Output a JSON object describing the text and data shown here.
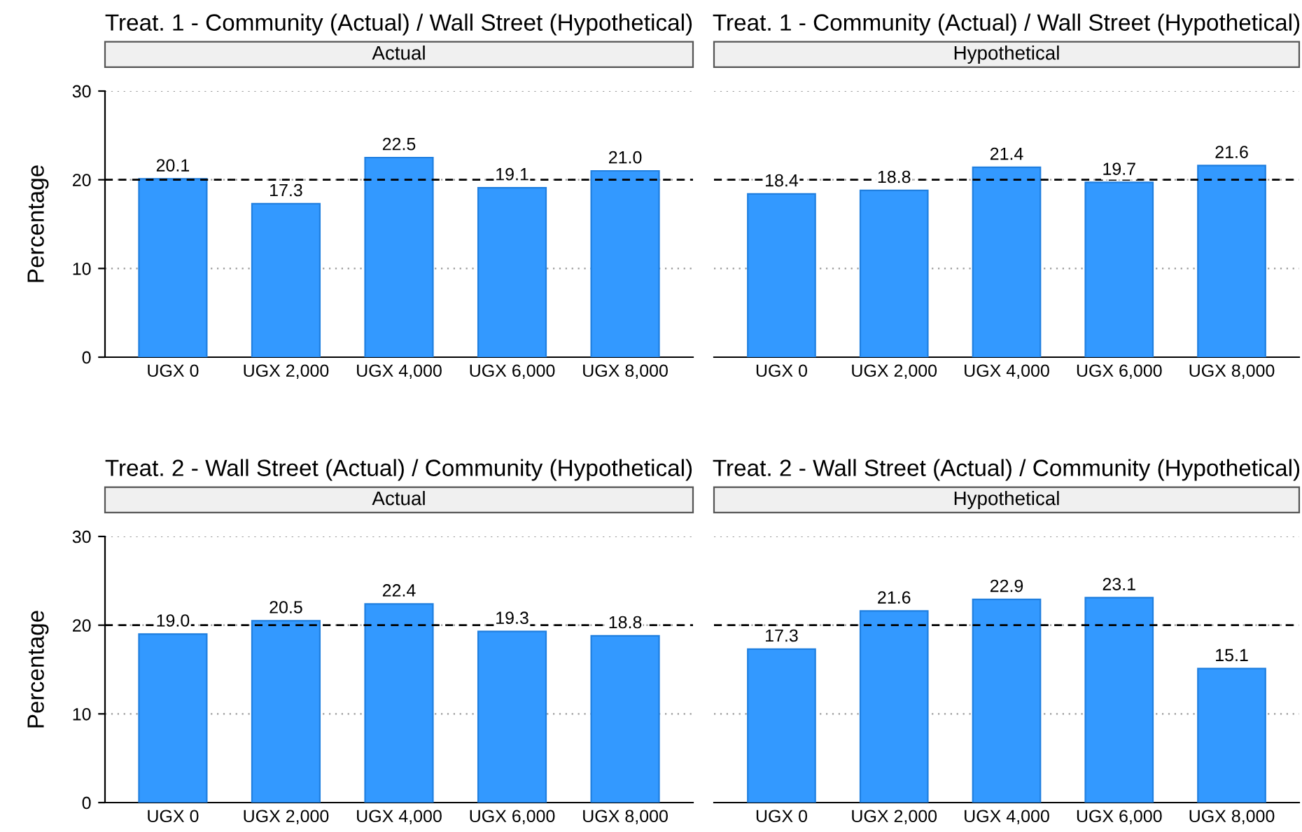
{
  "chart_data": [
    {
      "type": "bar",
      "title": "Treat. 1 - Community (Actual) / Wall Street (Hypothetical)",
      "subtitle": "Actual",
      "ylabel": "Percentage",
      "categories": [
        "UGX 0",
        "UGX 2,000",
        "UGX 4,000",
        "UGX 6,000",
        "UGX 8,000"
      ],
      "values": [
        20.1,
        17.3,
        22.5,
        19.1,
        21.0
      ],
      "value_labels": [
        "20.1",
        "17.3",
        "22.5",
        "19.1",
        "21.0"
      ],
      "color": "#3399ff",
      "ylim": [
        0,
        30
      ],
      "yticks": [
        0,
        10,
        20,
        30
      ],
      "grid": "y",
      "ref_lines": [
        {
          "axis": "y",
          "value": 20,
          "line_style": "dashed",
          "color": "#000000"
        }
      ]
    },
    {
      "type": "bar",
      "title": "Treat. 1 - Community (Actual) / Wall Street (Hypothetical)",
      "subtitle": "Hypothetical",
      "categories": [
        "UGX 0",
        "UGX 2,000",
        "UGX 4,000",
        "UGX 6,000",
        "UGX 8,000"
      ],
      "values": [
        18.4,
        18.8,
        21.4,
        19.7,
        21.6
      ],
      "value_labels": [
        "18.4",
        "18.8",
        "21.4",
        "19.7",
        "21.6"
      ],
      "color": "#3399ff",
      "ylim": [
        0,
        30
      ],
      "yticks": [
        0,
        10,
        20,
        30
      ],
      "grid": "y",
      "tick_labels": "x",
      "ref_lines": [
        {
          "axis": "y",
          "value": 20,
          "line_style": "dashed",
          "color": "#000000"
        }
      ]
    },
    {
      "type": "bar",
      "title": "Treat. 2 - Wall Street (Actual) / Community (Hypothetical)",
      "subtitle": "Actual",
      "ylabel": "Percentage",
      "categories": [
        "UGX 0",
        "UGX 2,000",
        "UGX 4,000",
        "UGX 6,000",
        "UGX 8,000"
      ],
      "values": [
        19.0,
        20.5,
        22.4,
        19.3,
        18.8
      ],
      "value_labels": [
        "19.0",
        "20.5",
        "22.4",
        "19.3",
        "18.8"
      ],
      "color": "#3399ff",
      "ylim": [
        0,
        30
      ],
      "yticks": [
        0,
        10,
        20,
        30
      ],
      "grid": "y",
      "ref_lines": [
        {
          "axis": "y",
          "value": 20,
          "line_style": "dashed",
          "color": "#000000"
        }
      ]
    },
    {
      "type": "bar",
      "title": "Treat. 2 - Wall Street (Actual) / Community (Hypothetical)",
      "subtitle": "Hypothetical",
      "categories": [
        "UGX 0",
        "UGX 2,000",
        "UGX 4,000",
        "UGX 6,000",
        "UGX 8,000"
      ],
      "values": [
        17.3,
        21.6,
        22.9,
        23.1,
        15.1
      ],
      "value_labels": [
        "17.3",
        "21.6",
        "22.9",
        "23.1",
        "15.1"
      ],
      "color": "#3399ff",
      "ylim": [
        0,
        30
      ],
      "yticks": [
        0,
        10,
        20,
        30
      ],
      "grid": "y",
      "tick_labels": "x",
      "ref_lines": [
        {
          "axis": "y",
          "value": 20,
          "line_style": "dashed",
          "color": "#000000"
        }
      ]
    }
  ]
}
